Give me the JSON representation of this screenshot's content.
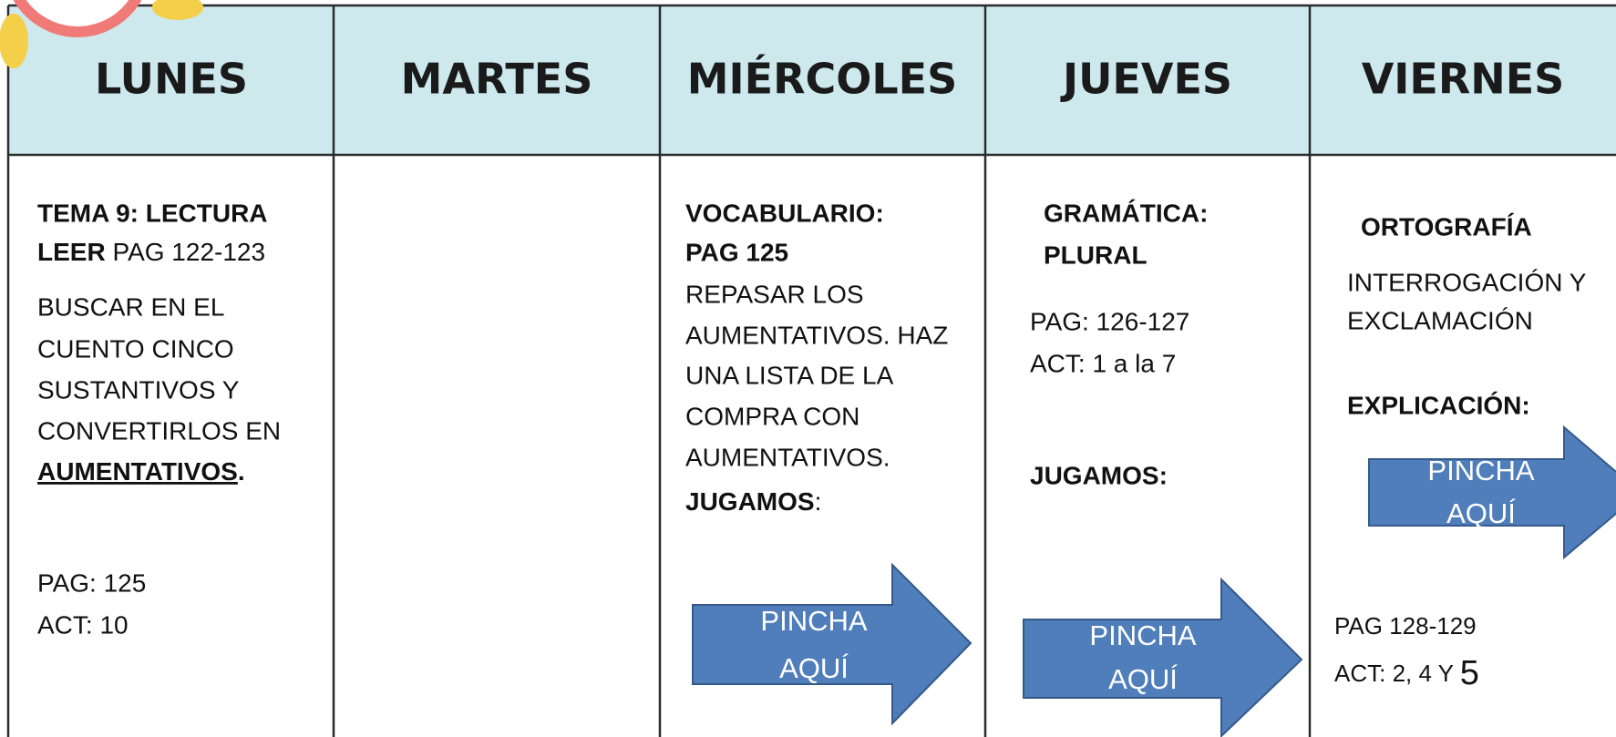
{
  "header": {
    "days": [
      "LUNES",
      "MARTES",
      "MIÉRCOLES",
      "JUEVES",
      "VIERNES"
    ]
  },
  "cells": {
    "lunes": {
      "title": "TEMA 9: LECTURA",
      "leer_bold": "LEER",
      "leer_rest": "PAG 122-123",
      "body": [
        "BUSCAR  EN EL",
        "CUENTO CINCO",
        "SUSTANTIVOS Y",
        "CONVERTIRLOS  EN"
      ],
      "emphasis": "AUMENTATIVOS",
      "emphasis_end": ".",
      "pag": "PAG: 125",
      "act": "ACT: 10"
    },
    "miercoles": {
      "title": [
        "VOCABULARIO:",
        "PAG 125"
      ],
      "body": [
        "REPASAR LOS",
        "AUMENTATIVOS. HAZ",
        "UNA LISTA DE LA",
        "COMPRA CON",
        "AUMENTATIVOS."
      ],
      "jugamos": "JUGAMOS",
      "jugamos_end": ":",
      "button": [
        "PINCHA",
        "AQUÍ"
      ]
    },
    "jueves": {
      "title": [
        "GRAMÁTICA:",
        "PLURAL"
      ],
      "body": [
        "PAG: 126-127",
        "ACT: 1  a la 7"
      ],
      "jugamos": "JUGAMOS:",
      "button": [
        "PINCHA",
        "AQUÍ"
      ]
    },
    "viernes": {
      "title": "ORTOGRAFÍA",
      "body": [
        "INTERROGACIÓN Y",
        "EXCLAMACIÓN"
      ],
      "explicacion": "EXPLICACIÓN:",
      "button": [
        "PINCHA",
        "AQUÍ"
      ],
      "pag": "PAG 128-129",
      "act": "ACT: 2, 4 Y",
      "act_big": "5"
    }
  }
}
